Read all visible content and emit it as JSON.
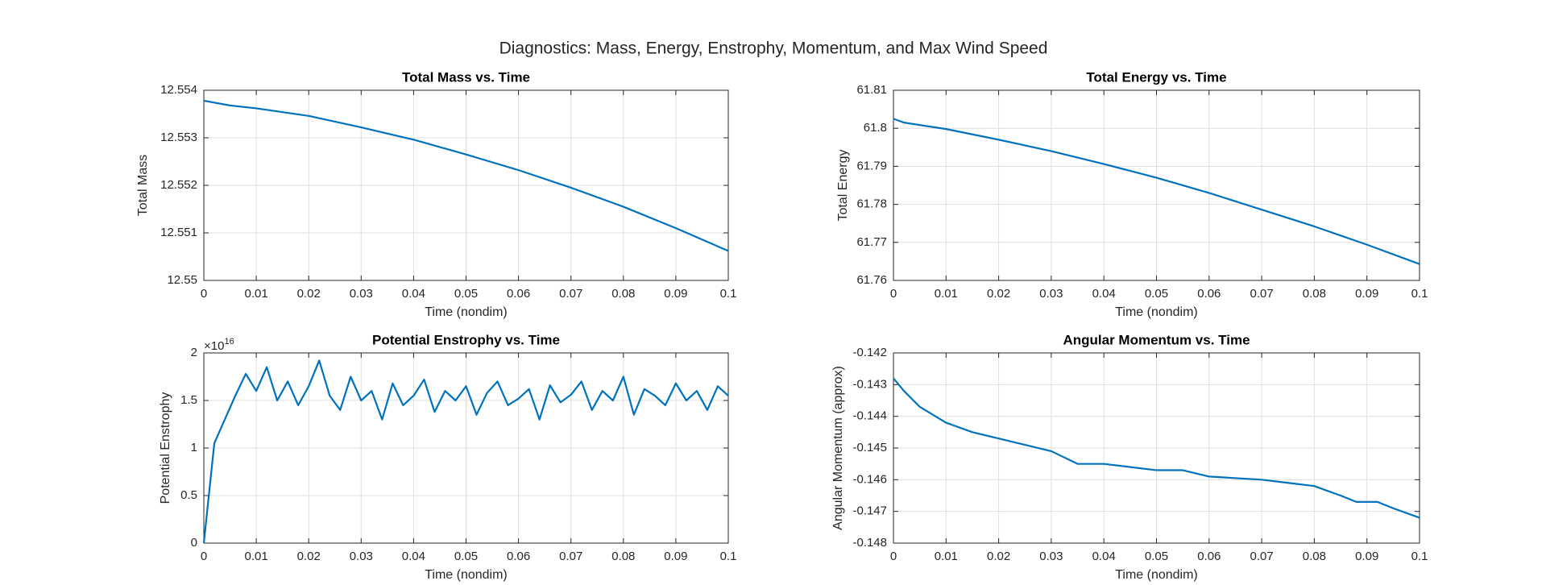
{
  "title": "Diagnostics: Mass, Energy, Enstrophy, Momentum, and Max Wind Speed",
  "chart_data": [
    {
      "type": "line",
      "title": "Total Mass vs. Time",
      "x_label": "Time (nondim)",
      "y_label": "Total Mass",
      "x": [
        0,
        0.005,
        0.01,
        0.02,
        0.03,
        0.04,
        0.05,
        0.06,
        0.07,
        0.08,
        0.09,
        0.1
      ],
      "series": [
        {
          "color": "#0072bd",
          "values": [
            12.55378,
            12.55368,
            12.55362,
            12.55346,
            12.55322,
            12.55296,
            12.55265,
            12.55232,
            12.55195,
            12.55155,
            12.5511,
            12.55062
          ]
        }
      ],
      "xlim": [
        0,
        0.1
      ],
      "xticks": [
        0,
        0.01,
        0.02,
        0.03,
        0.04,
        0.05,
        0.06,
        0.07,
        0.08,
        0.09,
        0.1
      ],
      "ylim": [
        12.55,
        12.554
      ],
      "yticks": [
        12.55,
        12.551,
        12.552,
        12.553,
        12.554
      ],
      "grid": true
    },
    {
      "type": "line",
      "title": "Total Energy vs. Time",
      "x_label": "Time (nondim)",
      "y_label": "Total Energy",
      "x": [
        0,
        0.002,
        0.01,
        0.02,
        0.03,
        0.04,
        0.05,
        0.06,
        0.07,
        0.08,
        0.09,
        0.1
      ],
      "series": [
        {
          "color": "#0072bd",
          "values": [
            61.8025,
            61.8015,
            61.7998,
            61.797,
            61.794,
            61.7906,
            61.787,
            61.783,
            61.7786,
            61.7742,
            61.7694,
            61.7643
          ]
        }
      ],
      "xlim": [
        0,
        0.1
      ],
      "xticks": [
        0,
        0.01,
        0.02,
        0.03,
        0.04,
        0.05,
        0.06,
        0.07,
        0.08,
        0.09,
        0.1
      ],
      "ylim": [
        61.76,
        61.81
      ],
      "yticks": [
        61.76,
        61.77,
        61.78,
        61.79,
        61.8,
        61.81
      ],
      "grid": true
    },
    {
      "type": "line",
      "title": "Potential Enstrophy vs. Time",
      "x_label": "Time (nondim)",
      "y_label": "Potential Enstrophy",
      "y_multiplier": "×10",
      "y_exponent": 16,
      "x": [
        0,
        0.002,
        0.004,
        0.006,
        0.008,
        0.01,
        0.012,
        0.014,
        0.016,
        0.018,
        0.02,
        0.022,
        0.024,
        0.026,
        0.028,
        0.03,
        0.032,
        0.034,
        0.036,
        0.038,
        0.04,
        0.042,
        0.044,
        0.046,
        0.048,
        0.05,
        0.052,
        0.054,
        0.056,
        0.058,
        0.06,
        0.062,
        0.064,
        0.066,
        0.068,
        0.07,
        0.072,
        0.074,
        0.076,
        0.078,
        0.08,
        0.082,
        0.084,
        0.086,
        0.088,
        0.09,
        0.092,
        0.094,
        0.096,
        0.098,
        0.1
      ],
      "series": [
        {
          "color": "#0072bd",
          "values": [
            0,
            1.05,
            1.3,
            1.55,
            1.78,
            1.6,
            1.85,
            1.5,
            1.7,
            1.45,
            1.65,
            1.92,
            1.55,
            1.4,
            1.75,
            1.5,
            1.6,
            1.3,
            1.68,
            1.45,
            1.55,
            1.72,
            1.38,
            1.6,
            1.5,
            1.65,
            1.35,
            1.58,
            1.7,
            1.45,
            1.52,
            1.62,
            1.3,
            1.66,
            1.48,
            1.56,
            1.7,
            1.4,
            1.6,
            1.5,
            1.75,
            1.35,
            1.62,
            1.55,
            1.45,
            1.68,
            1.5,
            1.6,
            1.4,
            1.65,
            1.55
          ]
        }
      ],
      "xlim": [
        0,
        0.1
      ],
      "xticks": [
        0,
        0.01,
        0.02,
        0.03,
        0.04,
        0.05,
        0.06,
        0.07,
        0.08,
        0.09,
        0.1
      ],
      "ylim": [
        0,
        2
      ],
      "yticks": [
        0,
        0.5,
        1,
        1.5,
        2
      ],
      "grid": true
    },
    {
      "type": "line",
      "title": "Angular Momentum vs. Time",
      "x_label": "Time (nondim)",
      "y_label": "Angular Momentum (approx)",
      "x": [
        0,
        0.002,
        0.005,
        0.01,
        0.015,
        0.02,
        0.03,
        0.035,
        0.04,
        0.045,
        0.05,
        0.055,
        0.06,
        0.07,
        0.075,
        0.08,
        0.085,
        0.088,
        0.092,
        0.095,
        0.1
      ],
      "series": [
        {
          "color": "#0072bd",
          "values": [
            -0.1428,
            -0.1432,
            -0.1437,
            -0.1442,
            -0.1445,
            -0.1447,
            -0.1451,
            -0.1455,
            -0.1455,
            -0.1456,
            -0.1457,
            -0.1457,
            -0.1459,
            -0.146,
            -0.1461,
            -0.1462,
            -0.1465,
            -0.1467,
            -0.1467,
            -0.1469,
            -0.1472
          ]
        }
      ],
      "xlim": [
        0,
        0.1
      ],
      "xticks": [
        0,
        0.01,
        0.02,
        0.03,
        0.04,
        0.05,
        0.06,
        0.07,
        0.08,
        0.09,
        0.1
      ],
      "ylim": [
        -0.148,
        -0.142
      ],
      "yticks": [
        -0.148,
        -0.147,
        -0.146,
        -0.145,
        -0.144,
        -0.143,
        -0.142
      ],
      "grid": true
    }
  ]
}
